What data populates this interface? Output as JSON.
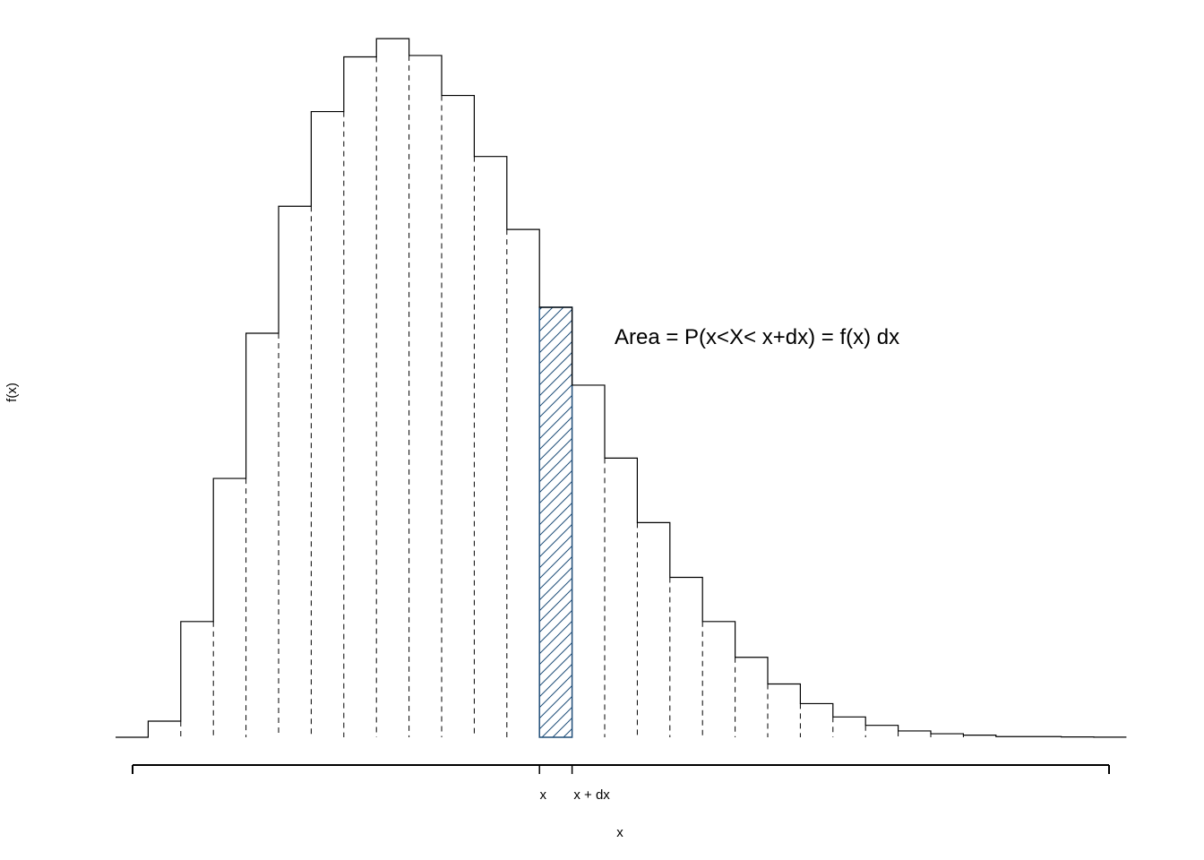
{
  "chart_data": {
    "type": "bar",
    "subtype": "histogram-step",
    "xlabel": "x",
    "ylabel": "f(x)",
    "annotation": "Area = P(x<X< x+dx) = f(x) dx",
    "x_tick_labels": [
      "x",
      "x + dx"
    ],
    "highlight_bin_index": 13,
    "highlight_color": "#1f4e79",
    "highlight_pattern": "diagonal-hatch",
    "bin_separator_style": "dashed",
    "values": [
      0,
      0.023,
      0.165,
      0.369,
      0.576,
      0.757,
      0.892,
      0.97,
      0.996,
      0.972,
      0.915,
      0.828,
      0.724,
      0.613,
      0.502,
      0.398,
      0.306,
      0.228,
      0.165,
      0.114,
      0.076,
      0.048,
      0.029,
      0.017,
      0.009,
      0.005,
      0.003,
      0.001,
      0.001,
      0.0005,
      0.0002
    ],
    "ylim": [
      0,
      1
    ],
    "grid": false,
    "legend": "none"
  }
}
